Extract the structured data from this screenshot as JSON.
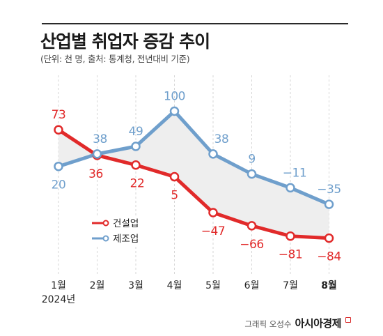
{
  "title": "산업별 취업자 증감 추이",
  "subtitle": "(단위: 천 명, 출처: 통계청, 전년대비 기준)",
  "credit": {
    "label": "그래픽 오성수",
    "brand": "아시아경제"
  },
  "colors": {
    "construction": "#e12a2a",
    "manufacturing": "#6f9fcc",
    "area_fill": "#eeeeee",
    "grid": "#d6d6d6"
  },
  "chart_data": {
    "type": "line",
    "title": "산업별 취업자 증감 추이",
    "categories": [
      "1월",
      "2월",
      "3월",
      "4월",
      "5월",
      "6월",
      "7월",
      "8월"
    ],
    "year_label": "2024년",
    "highlight_category": "8월",
    "series": [
      {
        "name": "건설업",
        "key": "construction",
        "values": [
          73,
          36,
          22,
          5,
          -47,
          -66,
          -81,
          -84
        ],
        "labels": [
          "73",
          "36",
          "22",
          "5",
          "−47",
          "−66",
          "−81",
          "−84"
        ]
      },
      {
        "name": "제조업",
        "key": "manufacturing",
        "values": [
          20,
          38,
          49,
          100,
          38,
          9,
          -11,
          -35
        ],
        "labels": [
          "20",
          "38",
          "49",
          "100",
          "38",
          "9",
          "−11",
          "−35"
        ]
      }
    ],
    "legend": {
      "placement": "lower-left",
      "items": [
        "건설업",
        "제조업"
      ]
    },
    "grid": "vertical dashed",
    "shaded_between_series": true
  }
}
